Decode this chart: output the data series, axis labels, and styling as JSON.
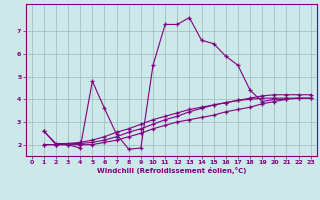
{
  "title": "",
  "xlabel": "Windchill (Refroidissement éolien,°C)",
  "ylabel": "",
  "bg_color": "#cce8e8",
  "line_color": "#800080",
  "grid_color": "#99bbbb",
  "xlim": [
    -0.5,
    23.5
  ],
  "ylim": [
    1.5,
    8.2
  ],
  "yticks": [
    2,
    3,
    4,
    5,
    6,
    7
  ],
  "xticks": [
    0,
    1,
    2,
    3,
    4,
    5,
    6,
    7,
    8,
    9,
    10,
    11,
    12,
    13,
    14,
    15,
    16,
    17,
    18,
    19,
    20,
    21,
    22,
    23
  ],
  "series": [
    {
      "x": [
        1,
        2,
        3,
        4,
        5,
        6,
        7,
        8,
        9,
        10,
        11,
        12,
        13,
        14,
        15,
        16,
        17,
        18,
        19,
        20,
        21
      ],
      "y": [
        2.6,
        2.0,
        2.0,
        1.85,
        4.8,
        3.6,
        2.45,
        1.8,
        1.85,
        5.5,
        7.3,
        7.3,
        7.6,
        6.6,
        6.45,
        5.9,
        5.5,
        4.4,
        3.9,
        4.0,
        4.0
      ]
    },
    {
      "x": [
        1,
        2,
        3,
        4,
        5,
        6,
        7,
        8,
        9,
        10,
        11,
        12,
        13,
        14,
        15,
        16,
        17,
        18,
        19,
        20,
        21,
        22,
        23
      ],
      "y": [
        2.0,
        2.0,
        2.0,
        2.0,
        2.0,
        2.1,
        2.2,
        2.35,
        2.5,
        2.7,
        2.85,
        3.0,
        3.1,
        3.2,
        3.3,
        3.45,
        3.55,
        3.65,
        3.8,
        3.9,
        4.0,
        4.05,
        4.05
      ]
    },
    {
      "x": [
        1,
        2,
        3,
        4,
        5,
        6,
        7,
        8,
        9,
        10,
        11,
        12,
        13,
        14,
        15,
        16,
        17,
        18,
        19,
        20,
        21,
        22,
        23
      ],
      "y": [
        2.0,
        2.0,
        2.05,
        2.1,
        2.2,
        2.35,
        2.55,
        2.7,
        2.9,
        3.1,
        3.25,
        3.4,
        3.55,
        3.65,
        3.75,
        3.85,
        3.95,
        4.0,
        4.05,
        4.05,
        4.05,
        4.05,
        4.05
      ]
    },
    {
      "x": [
        1,
        2,
        3,
        4,
        5,
        6,
        7,
        8,
        9,
        10,
        11,
        12,
        13,
        14,
        15,
        16,
        17,
        18,
        19,
        20,
        21,
        22,
        23
      ],
      "y": [
        2.6,
        2.05,
        2.05,
        2.05,
        2.1,
        2.2,
        2.35,
        2.55,
        2.7,
        2.9,
        3.1,
        3.25,
        3.45,
        3.6,
        3.75,
        3.85,
        3.95,
        4.05,
        4.15,
        4.2,
        4.2,
        4.2,
        4.2
      ]
    }
  ]
}
